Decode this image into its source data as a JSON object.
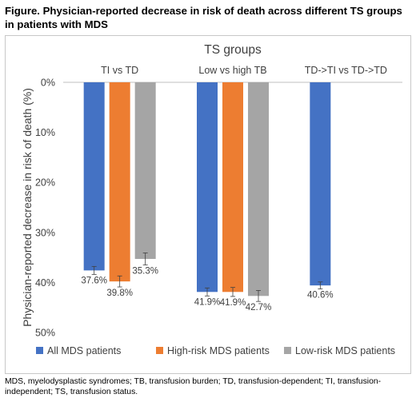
{
  "figure": {
    "title": "Figure. Physician-reported decrease in risk of death across different TS groups in patients with MDS",
    "footnote": "MDS, myelodysplastic syndromes; TB, transfusion burden; TD, transfusion-dependent; TI, transfusion-independent; TS, transfusion status."
  },
  "chart_data": {
    "type": "bar",
    "title": "TS groups",
    "ylabel": "Physician-reported decrease in risk of death (%)",
    "xlabel": "",
    "categories": [
      "TI vs TD",
      "Low vs high TB",
      "TD->TI vs TD->TD"
    ],
    "ylim": [
      0,
      50
    ],
    "y_inverted": true,
    "yticks": [
      "0%",
      "10%",
      "20%",
      "30%",
      "40%",
      "50%"
    ],
    "ytick_values": [
      0,
      10,
      20,
      30,
      40,
      50
    ],
    "category_axis_position": "top",
    "grid": false,
    "legend_position": "bottom",
    "series": [
      {
        "name": "All MDS patients",
        "color": "#4472C4",
        "values": [
          37.6,
          41.9,
          40.6
        ],
        "labels": [
          "37.6%",
          "41.9%",
          "40.6%"
        ],
        "error": [
          0.8,
          0.8,
          0.7
        ]
      },
      {
        "name": "High-risk MDS patients",
        "color": "#ED7D31",
        "values": [
          39.8,
          41.9,
          null
        ],
        "labels": [
          "39.8%",
          "41.9%",
          null
        ],
        "error": [
          1.1,
          0.9,
          null
        ]
      },
      {
        "name": "Low-risk MDS patients",
        "color": "#A5A5A5",
        "values": [
          35.3,
          42.7,
          null
        ],
        "labels": [
          "35.3%",
          "42.7%",
          null
        ],
        "error": [
          1.2,
          1.1,
          null
        ]
      }
    ]
  }
}
